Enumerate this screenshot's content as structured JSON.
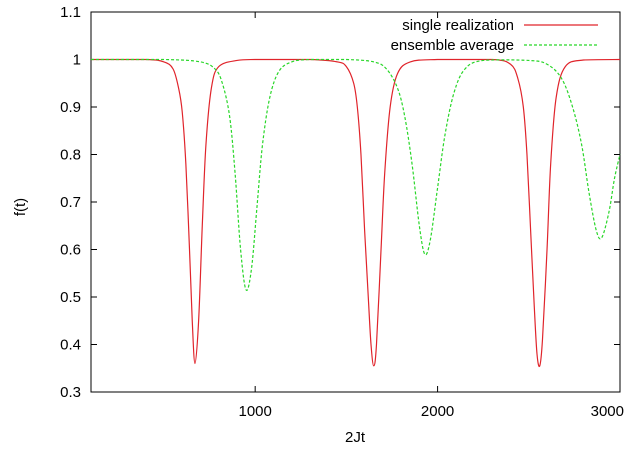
{
  "chart_data": {
    "type": "line",
    "xlabel": "2Jt",
    "ylabel": "f(t)",
    "xlim": [
      100,
      3000
    ],
    "ylim": [
      0.3,
      1.1
    ],
    "xticks": [
      1000,
      2000,
      3000
    ],
    "xtick_labels": [
      "1000",
      "2000",
      "3000"
    ],
    "yticks": [
      0.3,
      0.4,
      0.5,
      0.6,
      0.7,
      0.8,
      0.9,
      1.0,
      1.1
    ],
    "ytick_labels": [
      "0.3",
      "0.4",
      "0.5",
      "0.6",
      "0.7",
      "0.8",
      "0.9",
      "1",
      "1.1"
    ],
    "grid": false,
    "legend_position": "top-right",
    "series": [
      {
        "name": "single realization",
        "color": "#e0242b",
        "style": "solid",
        "x": [
          100,
          400,
          500,
          550,
          580,
          600,
          620,
          640,
          655,
          670,
          690,
          710,
          730,
          760,
          800,
          900,
          1000,
          1300,
          1450,
          1500,
          1540,
          1560,
          1580,
          1600,
          1620,
          1635,
          1650,
          1665,
          1690,
          1710,
          1740,
          1780,
          1850,
          2000,
          2300,
          2400,
          2440,
          2470,
          2490,
          2510,
          2530,
          2545,
          2560,
          2575,
          2600,
          2620,
          2650,
          2700,
          2800,
          3000
        ],
        "y": [
          1.0,
          1.0,
          0.995,
          0.98,
          0.94,
          0.89,
          0.78,
          0.6,
          0.45,
          0.36,
          0.45,
          0.65,
          0.82,
          0.94,
          0.985,
          0.998,
          1.0,
          1.0,
          0.995,
          0.985,
          0.95,
          0.9,
          0.8,
          0.64,
          0.5,
          0.4,
          0.355,
          0.4,
          0.6,
          0.76,
          0.9,
          0.97,
          0.995,
          1.0,
          1.0,
          0.99,
          0.96,
          0.9,
          0.8,
          0.64,
          0.48,
          0.38,
          0.355,
          0.41,
          0.6,
          0.78,
          0.92,
          0.985,
          0.999,
          1.0
        ]
      },
      {
        "name": "ensemble average",
        "color": "#28d628",
        "style": "dashed",
        "x": [
          100,
          500,
          700,
          780,
          820,
          860,
          890,
          920,
          950,
          980,
          1010,
          1040,
          1080,
          1130,
          1200,
          1300,
          1500,
          1650,
          1720,
          1780,
          1820,
          1860,
          1900,
          1930,
          1960,
          2000,
          2040,
          2090,
          2150,
          2250,
          2500,
          2600,
          2680,
          2740,
          2790,
          2830,
          2870,
          2900,
          2940,
          2970,
          3000
        ],
        "y": [
          1.0,
          1.0,
          0.995,
          0.98,
          0.95,
          0.88,
          0.76,
          0.6,
          0.515,
          0.56,
          0.69,
          0.82,
          0.92,
          0.975,
          0.995,
          1.0,
          1.0,
          0.995,
          0.98,
          0.94,
          0.88,
          0.78,
          0.65,
          0.59,
          0.62,
          0.73,
          0.84,
          0.93,
          0.98,
          0.998,
          0.998,
          0.99,
          0.96,
          0.9,
          0.82,
          0.72,
          0.64,
          0.625,
          0.68,
          0.75,
          0.8
        ]
      }
    ]
  }
}
